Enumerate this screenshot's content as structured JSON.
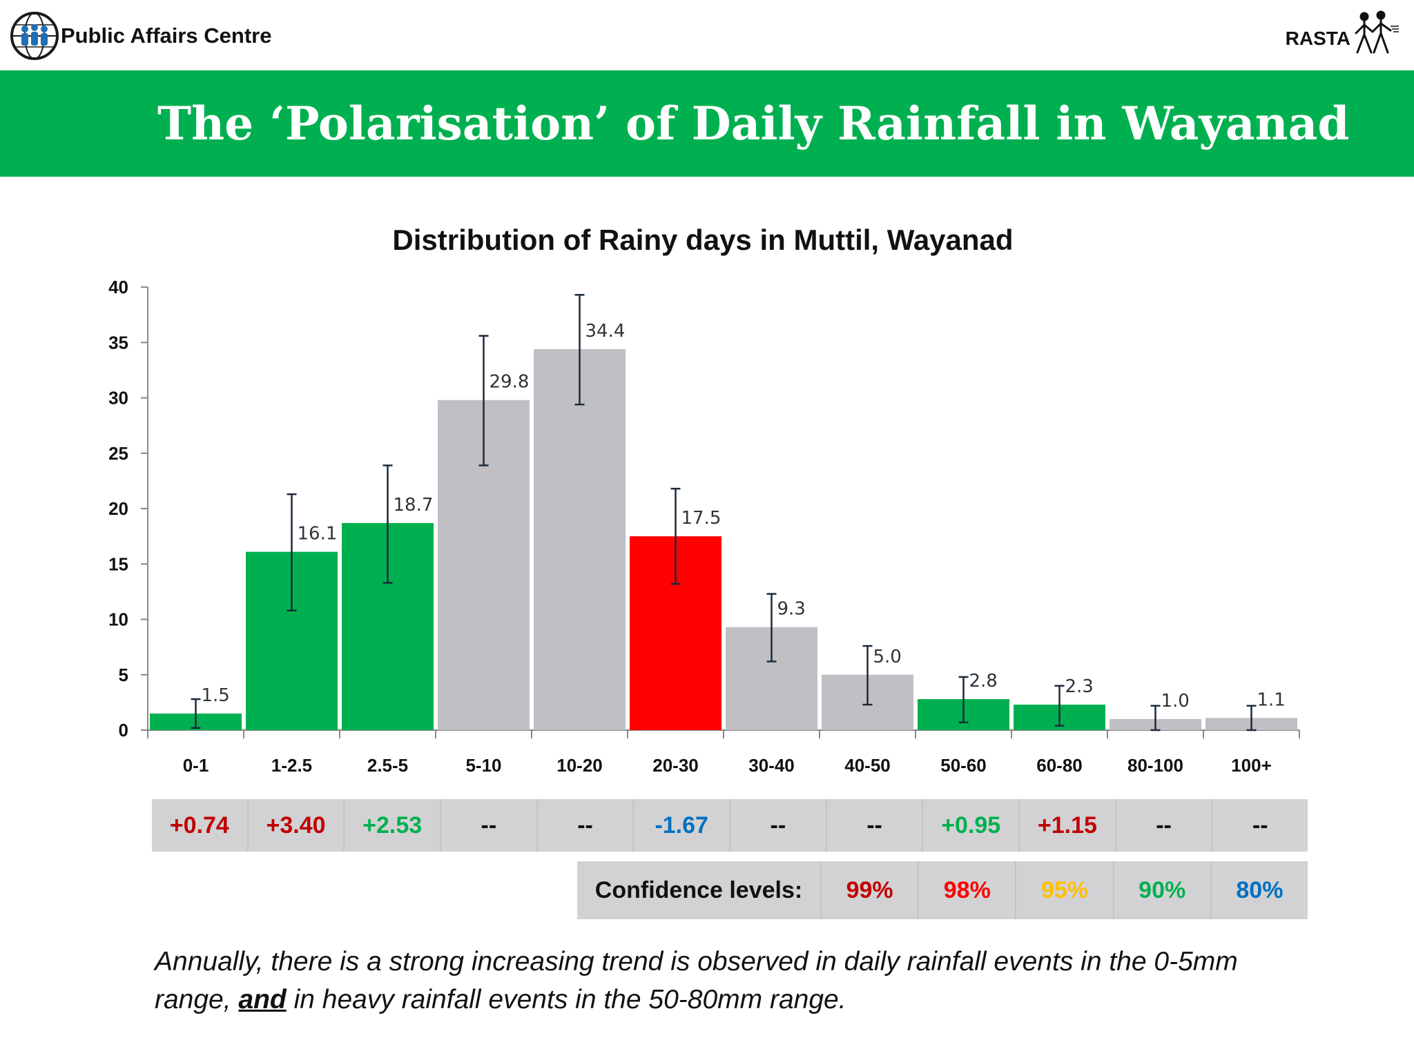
{
  "header": {
    "org_name": "Public Affairs Centre",
    "partner_name": "RASTA",
    "left_logo_icon": "globe-people-logo-icon",
    "right_logo_icon": "walking-people-logo-icon"
  },
  "slide": {
    "title": "The ‘Polarisation’ of Daily Rainfall in Wayanad",
    "title_band_color": "#00b050"
  },
  "chart_data": {
    "type": "bar",
    "title": "Distribution of Rainy days in Muttil, Wayanad",
    "xlabel": "",
    "ylabel": "",
    "ylim": [
      0,
      40
    ],
    "yticks": [
      0,
      5,
      10,
      15,
      20,
      25,
      30,
      35,
      40
    ],
    "grid": false,
    "legend": "none",
    "categories": [
      "0-1",
      "1-2.5",
      "2.5-5",
      "5-10",
      "10-20",
      "20-30",
      "30-40",
      "40-50",
      "50-60",
      "60-80",
      "80-100",
      "100+"
    ],
    "values": [
      1.5,
      16.1,
      18.7,
      29.8,
      34.4,
      17.5,
      9.3,
      5.0,
      2.8,
      2.3,
      1.0,
      1.1
    ],
    "value_labels": [
      "1.5",
      "16.1",
      "18.7",
      "29.8",
      "34.4",
      "17.5",
      "9.3",
      "5.0",
      "2.8",
      "2.3",
      "1.0",
      "1.1"
    ],
    "error_low": [
      0.2,
      10.8,
      13.3,
      23.9,
      29.4,
      13.2,
      6.2,
      2.3,
      0.7,
      0.4,
      0.0,
      0.0
    ],
    "error_high": [
      2.8,
      21.3,
      23.9,
      35.6,
      39.3,
      21.8,
      12.3,
      7.6,
      4.8,
      4.0,
      2.2,
      2.2
    ],
    "bar_colors": [
      "#00b050",
      "#00b050",
      "#00b050",
      "#c0bfc4",
      "#c0bfc4",
      "#ff0000",
      "#c0bfc4",
      "#c0bfc4",
      "#00b050",
      "#00b050",
      "#c0bfc4",
      "#c0bfc4"
    ]
  },
  "trend_row": [
    {
      "text": "+0.74",
      "color": "#c00000"
    },
    {
      "text": "+3.40",
      "color": "#c00000"
    },
    {
      "text": "+2.53",
      "color": "#00b050"
    },
    {
      "text": "--",
      "color": "#111111"
    },
    {
      "text": "--",
      "color": "#111111"
    },
    {
      "text": "-1.67",
      "color": "#0070c0"
    },
    {
      "text": "--",
      "color": "#111111"
    },
    {
      "text": "--",
      "color": "#111111"
    },
    {
      "text": "+0.95",
      "color": "#00b050"
    },
    {
      "text": "+1.15",
      "color": "#c00000"
    },
    {
      "text": "--",
      "color": "#111111"
    },
    {
      "text": "--",
      "color": "#111111"
    }
  ],
  "confidence": {
    "label": "Confidence levels:",
    "levels": [
      {
        "text": "99%",
        "color": "#c00000"
      },
      {
        "text": "98%",
        "color": "#ff0000"
      },
      {
        "text": "95%",
        "color": "#ffc000"
      },
      {
        "text": "90%",
        "color": "#00b050"
      },
      {
        "text": "80%",
        "color": "#0070c0"
      }
    ]
  },
  "caption": {
    "part1": "Annually, there is a strong increasing trend is observed in daily rainfall events in the 0-5mm range, ",
    "emphasis": "and",
    "part2": " in heavy rainfall events in the 50-80mm range."
  }
}
